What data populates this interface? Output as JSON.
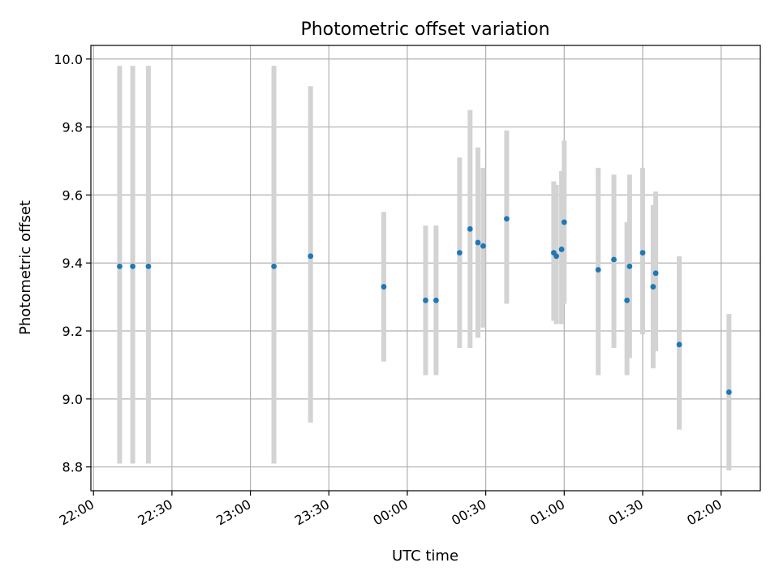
{
  "chart_data": {
    "type": "scatter",
    "title": "Photometric offset variation",
    "xlabel": "UTC time",
    "ylabel": "Photometric offset",
    "x_tick_labels": [
      "22:00",
      "22:30",
      "23:00",
      "23:30",
      "00:00",
      "00:30",
      "01:00",
      "01:30",
      "02:00"
    ],
    "y_tick_labels": [
      "8.8",
      "9.0",
      "9.2",
      "9.4",
      "9.6",
      "9.8",
      "10.0"
    ],
    "xlim": [
      "21:59",
      "02:15"
    ],
    "ylim": [
      8.73,
      10.04
    ],
    "grid": true,
    "colors": {
      "points": "#1f77b4",
      "errorbars": "#d3d3d3",
      "grid": "#b0b0b0"
    },
    "series": [
      {
        "points": [
          {
            "x": "22:10",
            "y": 9.39,
            "ylow": 8.81,
            "yhigh": 9.98
          },
          {
            "x": "22:15",
            "y": 9.39,
            "ylow": 8.81,
            "yhigh": 9.98
          },
          {
            "x": "22:21",
            "y": 9.39,
            "ylow": 8.81,
            "yhigh": 9.98
          },
          {
            "x": "23:09",
            "y": 9.39,
            "ylow": 8.81,
            "yhigh": 9.98
          },
          {
            "x": "23:23",
            "y": 9.42,
            "ylow": 8.93,
            "yhigh": 9.92
          },
          {
            "x": "23:51",
            "y": 9.33,
            "ylow": 9.11,
            "yhigh": 9.55
          },
          {
            "x": "00:07",
            "y": 9.29,
            "ylow": 9.07,
            "yhigh": 9.51
          },
          {
            "x": "00:11",
            "y": 9.29,
            "ylow": 9.07,
            "yhigh": 9.51
          },
          {
            "x": "00:20",
            "y": 9.43,
            "ylow": 9.15,
            "yhigh": 9.71
          },
          {
            "x": "00:24",
            "y": 9.5,
            "ylow": 9.15,
            "yhigh": 9.85
          },
          {
            "x": "00:27",
            "y": 9.46,
            "ylow": 9.18,
            "yhigh": 9.74
          },
          {
            "x": "00:29",
            "y": 9.45,
            "ylow": 9.21,
            "yhigh": 9.68
          },
          {
            "x": "00:38",
            "y": 9.53,
            "ylow": 9.28,
            "yhigh": 9.79
          },
          {
            "x": "00:56",
            "y": 9.43,
            "ylow": 9.23,
            "yhigh": 9.64
          },
          {
            "x": "00:57",
            "y": 9.42,
            "ylow": 9.22,
            "yhigh": 9.63
          },
          {
            "x": "00:59",
            "y": 9.44,
            "ylow": 9.22,
            "yhigh": 9.67
          },
          {
            "x": "01:00",
            "y": 9.52,
            "ylow": 9.28,
            "yhigh": 9.76
          },
          {
            "x": "01:13",
            "y": 9.38,
            "ylow": 9.07,
            "yhigh": 9.68
          },
          {
            "x": "01:19",
            "y": 9.41,
            "ylow": 9.15,
            "yhigh": 9.66
          },
          {
            "x": "01:24",
            "y": 9.29,
            "ylow": 9.07,
            "yhigh": 9.52
          },
          {
            "x": "01:25",
            "y": 9.39,
            "ylow": 9.12,
            "yhigh": 9.66
          },
          {
            "x": "01:30",
            "y": 9.43,
            "ylow": 9.19,
            "yhigh": 9.68
          },
          {
            "x": "01:34",
            "y": 9.33,
            "ylow": 9.09,
            "yhigh": 9.57
          },
          {
            "x": "01:35",
            "y": 9.37,
            "ylow": 9.14,
            "yhigh": 9.61
          },
          {
            "x": "01:44",
            "y": 9.16,
            "ylow": 8.91,
            "yhigh": 9.42
          },
          {
            "x": "02:03",
            "y": 9.02,
            "ylow": 8.79,
            "yhigh": 9.25
          }
        ]
      }
    ]
  }
}
